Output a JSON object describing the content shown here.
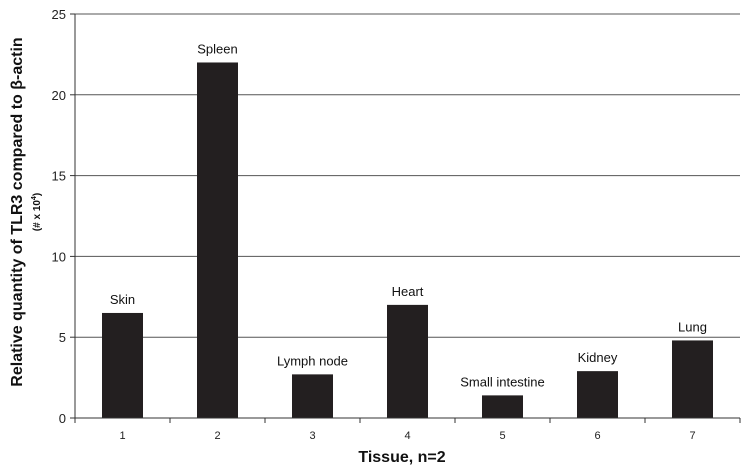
{
  "chart_data": {
    "type": "bar",
    "categories": [
      "1",
      "2",
      "3",
      "4",
      "5",
      "6",
      "7"
    ],
    "bar_labels": [
      "Skin",
      "Spleen",
      "Lymph node",
      "Heart",
      "Small intestine",
      "Kidney",
      "Lung"
    ],
    "values": [
      6.5,
      22.0,
      2.7,
      7.0,
      1.4,
      2.9,
      4.8
    ],
    "xlabel": "Tissue, n=2",
    "ylabel": "Relative quantity of TLR3 compared to β-actin",
    "ylabel_sub": "(# x 10",
    "ylabel_sub_exp": "4",
    "ylabel_sub_end": ")",
    "ylim": [
      0,
      25
    ],
    "yticks": [
      "0",
      "5",
      "10",
      "15",
      "20",
      "25"
    ],
    "grid": true,
    "bar_color": "#231f20",
    "grid_color": "#555555"
  }
}
